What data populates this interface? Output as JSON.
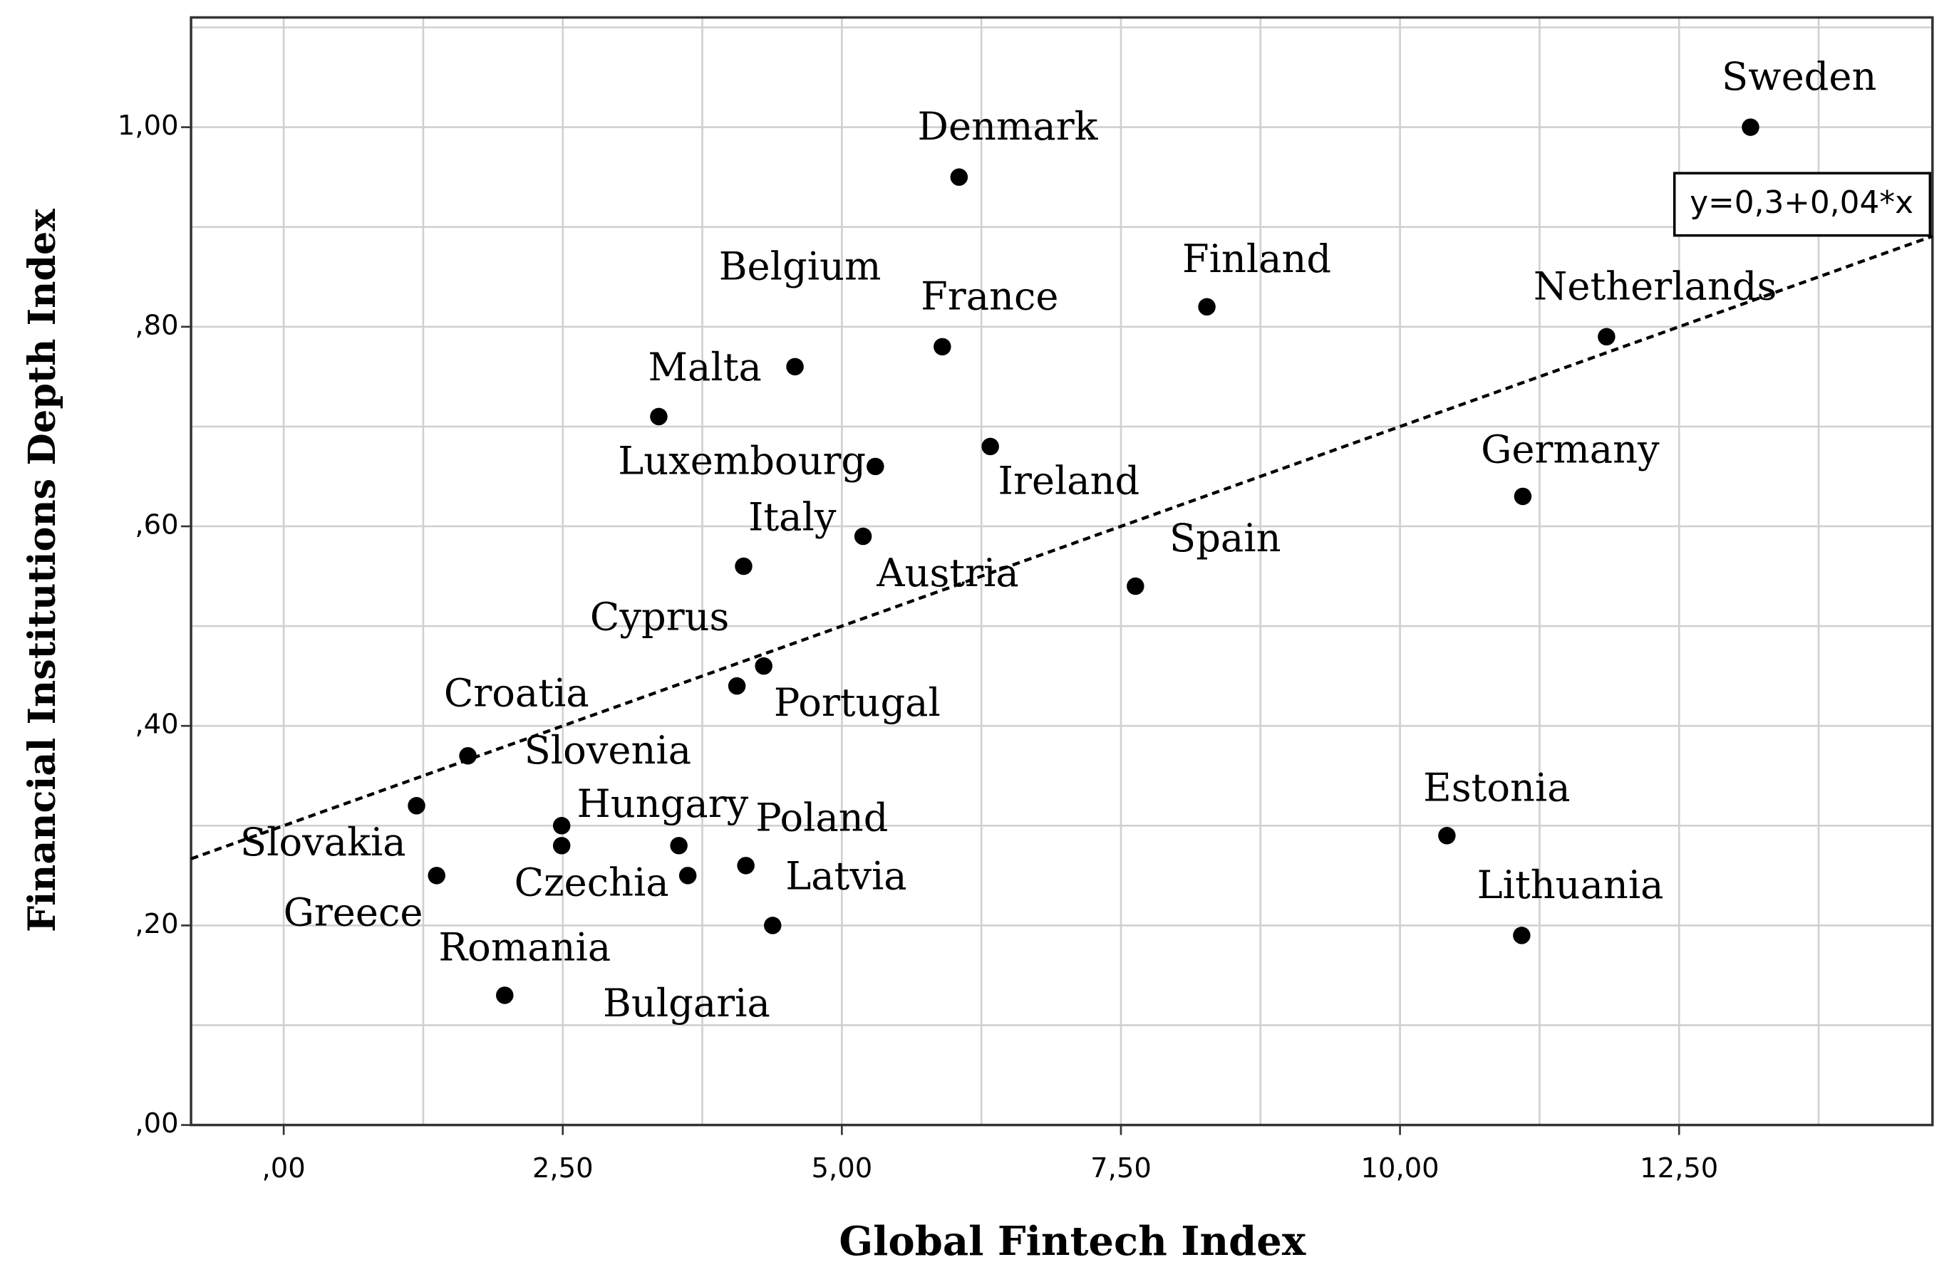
{
  "chart_data": {
    "type": "scatter",
    "x_label": "Global Fintech Index",
    "y_label": "Financial Institutions Depth Index",
    "annotation": "y=0,3+0,04*x",
    "fit": {
      "intercept": 0.3,
      "slope": 0.04,
      "color": "#000000"
    },
    "color": "#000000",
    "categories": [
      "Sweden",
      "Denmark",
      "Finland",
      "Netherlands",
      "France",
      "Belgium",
      "Malta",
      "Ireland",
      "Luxembourg",
      "Germany",
      "Austria",
      "Italy",
      "Spain",
      "Cyprus",
      "Portugal",
      "Croatia",
      "Slovakia",
      "Greece",
      "Slovenia",
      "Hungary",
      "Czechia",
      "Poland",
      "Latvia",
      "Bulgaria",
      "Romania",
      "Estonia",
      "Lithuania"
    ],
    "x": [
      13.14,
      6.05,
      8.27,
      11.85,
      5.9,
      4.58,
      3.36,
      6.33,
      5.3,
      11.1,
      5.19,
      4.12,
      7.63,
      4.06,
      4.3,
      1.65,
      1.19,
      1.37,
      2.49,
      3.54,
      2.49,
      4.14,
      4.38,
      3.62,
      1.98,
      10.42,
      11.09
    ],
    "values": [
      1.0,
      0.95,
      0.82,
      0.79,
      0.78,
      0.76,
      0.71,
      0.68,
      0.66,
      0.63,
      0.59,
      0.56,
      0.54,
      0.44,
      0.46,
      0.37,
      0.32,
      0.25,
      0.3,
      0.28,
      0.28,
      0.26,
      0.2,
      0.25,
      0.13,
      0.29,
      0.19
    ],
    "xlim": [
      -0.83,
      14.77
    ],
    "ylim": [
      0,
      1.11
    ],
    "xticks": [
      {
        "value": 0,
        "label": ",00"
      },
      {
        "value": 2.5,
        "label": "2,50"
      },
      {
        "value": 5,
        "label": "5,00"
      },
      {
        "value": 7.5,
        "label": "7,50"
      },
      {
        "value": 10,
        "label": "10,00"
      },
      {
        "value": 12.5,
        "label": "12,50"
      }
    ],
    "yticks": [
      {
        "value": 0,
        "label": ",00"
      },
      {
        "value": 0.2,
        "label": ",20"
      },
      {
        "value": 0.4,
        "label": ",40"
      },
      {
        "value": 0.6,
        "label": ",60"
      },
      {
        "value": 0.8,
        "label": ",80"
      },
      {
        "value": 1,
        "label": "1,00"
      }
    ],
    "xgrid": [
      0,
      1.25,
      2.5,
      3.75,
      5,
      6.25,
      7.5,
      8.75,
      10,
      11.25,
      12.5,
      13.75
    ],
    "ygrid": [
      0.1,
      0.2,
      0.3,
      0.4,
      0.5,
      0.6,
      0.7,
      0.8,
      0.9,
      1.0,
      1.1
    ],
    "grid": true
  }
}
